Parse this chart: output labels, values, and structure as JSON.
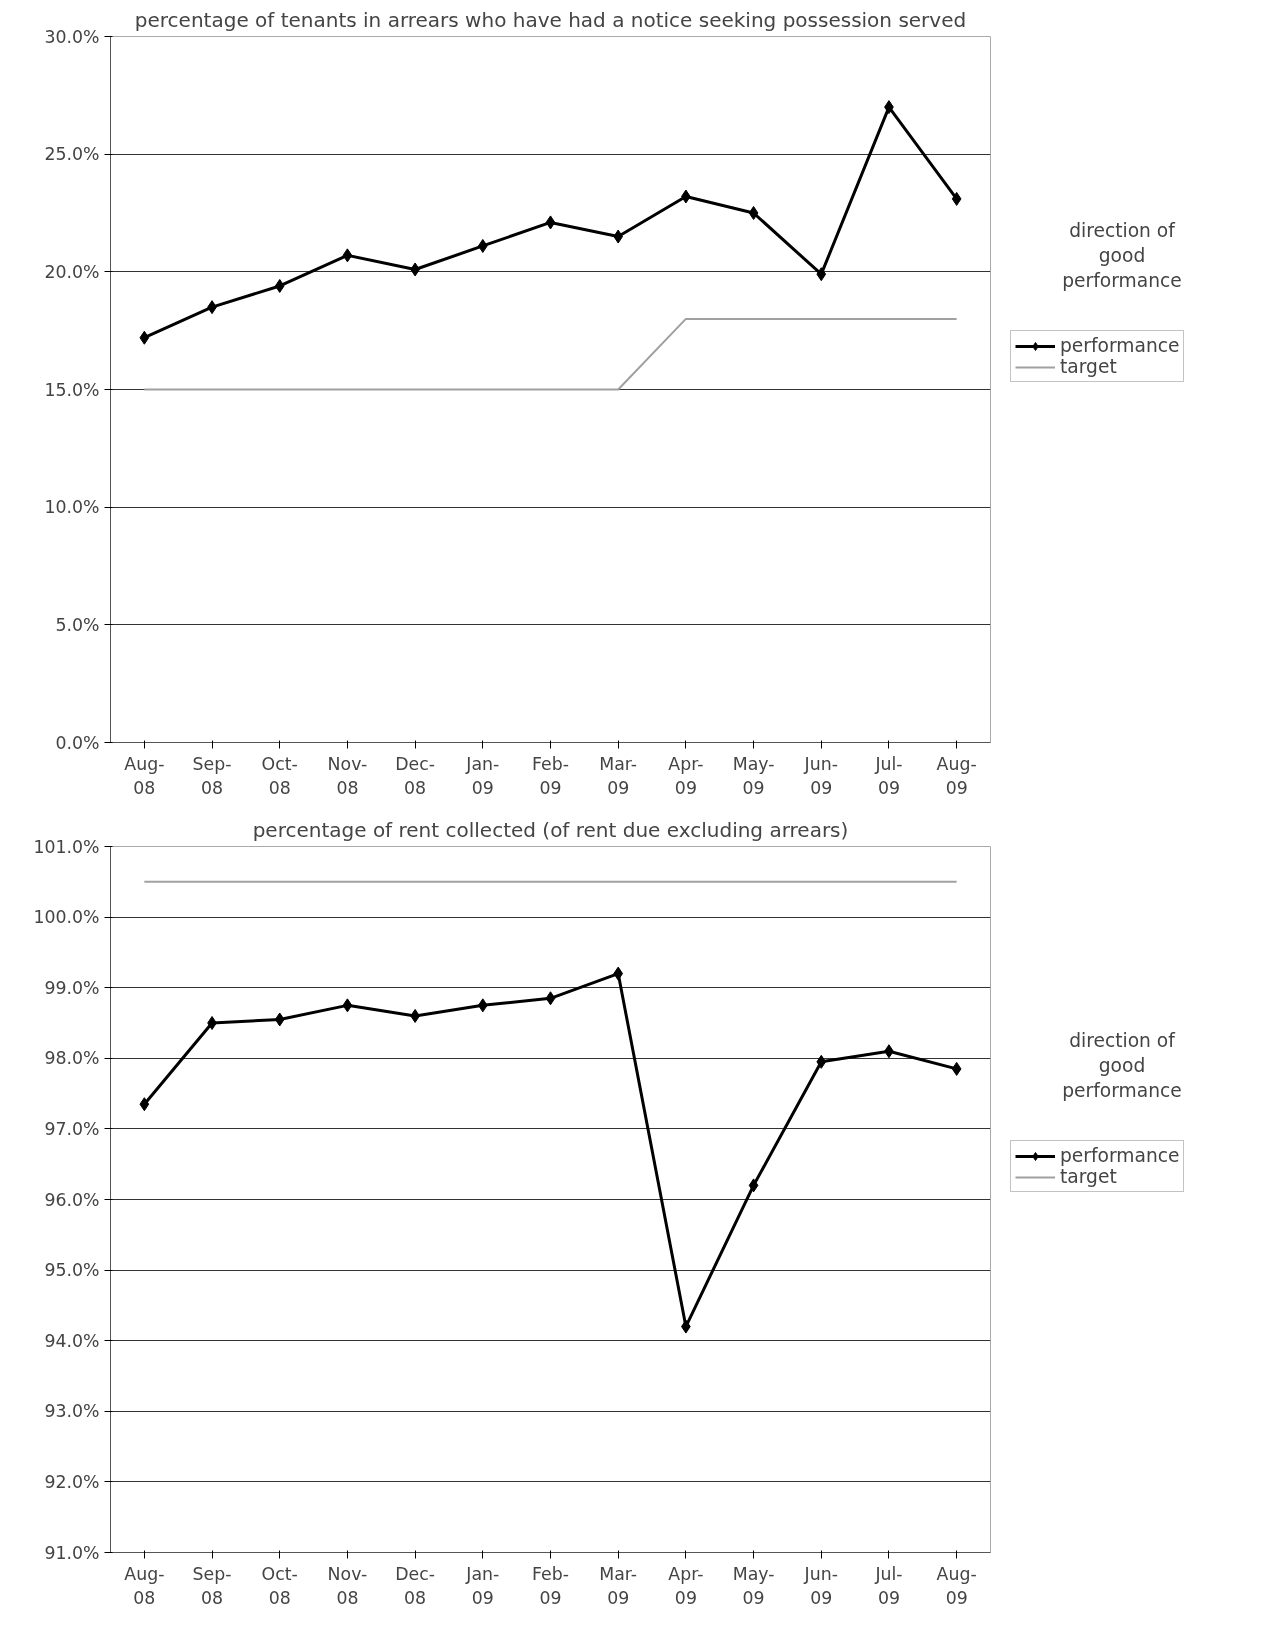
{
  "chart_data": [
    {
      "type": "line",
      "title": "percentage of tenants in arrears who have had a notice seeking possession served",
      "categories": [
        "Aug-08",
        "Sep-08",
        "Oct-08",
        "Nov-08",
        "Dec-08",
        "Jan-09",
        "Feb-09",
        "Mar-09",
        "Apr-09",
        "May-09",
        "Jun-09",
        "Jul-09",
        "Aug-09"
      ],
      "series": [
        {
          "name": "performance",
          "color": "#000000",
          "marker": "diamond",
          "values": [
            17.2,
            18.5,
            19.4,
            20.7,
            20.1,
            21.1,
            22.1,
            21.5,
            23.2,
            22.5,
            19.9,
            27.0,
            23.1
          ]
        },
        {
          "name": "target",
          "color": "#a0a0a0",
          "marker": "none",
          "values": [
            15,
            15,
            15,
            15,
            15,
            15,
            15,
            15,
            18,
            18,
            18,
            18,
            18
          ]
        }
      ],
      "ylim": [
        0,
        30
      ],
      "yticks": [
        {
          "value": 0,
          "label": "0.0%"
        },
        {
          "value": 5,
          "label": "5.0%"
        },
        {
          "value": 10,
          "label": "10.0%"
        },
        {
          "value": 15,
          "label": "15.0%"
        },
        {
          "value": 20,
          "label": "20.0%"
        },
        {
          "value": 25,
          "label": "25.0%"
        },
        {
          "value": 30,
          "label": "30.0%"
        }
      ],
      "grid": "y",
      "legend": "right",
      "annotations": [
        "direction of good performance"
      ]
    },
    {
      "type": "line",
      "title": "percentage of rent collected (of rent due excluding arrears)",
      "categories": [
        "Aug-08",
        "Sep-08",
        "Oct-08",
        "Nov-08",
        "Dec-08",
        "Jan-09",
        "Feb-09",
        "Mar-09",
        "Apr-09",
        "May-09",
        "Jun-09",
        "Jul-09",
        "Aug-09"
      ],
      "series": [
        {
          "name": "performance",
          "color": "#000000",
          "marker": "diamond",
          "values": [
            97.35,
            98.5,
            98.55,
            98.75,
            98.6,
            98.75,
            98.85,
            99.2,
            94.2,
            96.2,
            97.95,
            98.1,
            97.85
          ]
        },
        {
          "name": "target",
          "color": "#a0a0a0",
          "marker": "none",
          "values": [
            100.5,
            100.5,
            100.5,
            100.5,
            100.5,
            100.5,
            100.5,
            100.5,
            100.5,
            100.5,
            100.5,
            100.5,
            100.5
          ]
        }
      ],
      "ylim": [
        91,
        101
      ],
      "yticks": [
        {
          "value": 91,
          "label": "91.0%"
        },
        {
          "value": 92,
          "label": "92.0%"
        },
        {
          "value": 93,
          "label": "93.0%"
        },
        {
          "value": 94,
          "label": "94.0%"
        },
        {
          "value": 95,
          "label": "95.0%"
        },
        {
          "value": 96,
          "label": "96.0%"
        },
        {
          "value": 97,
          "label": "97.0%"
        },
        {
          "value": 98,
          "label": "98.0%"
        },
        {
          "value": 99,
          "label": "99.0%"
        },
        {
          "value": 100,
          "label": "100.0%"
        },
        {
          "value": 101,
          "label": "101.0%"
        }
      ],
      "grid": "y",
      "legend": "right",
      "annotations": [
        "direction of good performance"
      ]
    }
  ]
}
